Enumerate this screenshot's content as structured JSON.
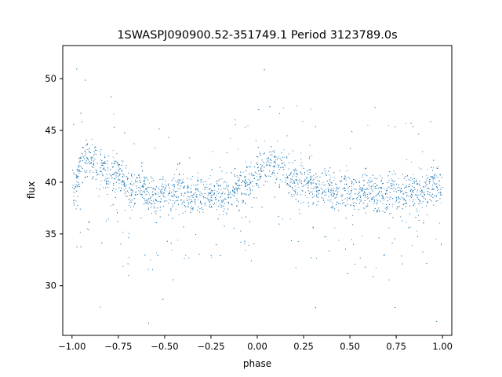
{
  "chart_data": {
    "type": "scatter",
    "title": "1SWASPJ090900.52-351749.1 Period 3123789.0s",
    "xlabel": "phase",
    "ylabel": "flux",
    "xlim": [
      -1.05,
      1.05
    ],
    "ylim": [
      25.2,
      53.2
    ],
    "xticks": [
      -1.0,
      -0.75,
      -0.5,
      -0.25,
      0.0,
      0.25,
      0.5,
      0.75,
      1.0
    ],
    "xtick_labels": [
      "−1.00",
      "−0.75",
      "−0.50",
      "−0.25",
      "0.00",
      "0.25",
      "0.50",
      "0.75",
      "1.00"
    ],
    "yticks": [
      30,
      35,
      40,
      45,
      50
    ],
    "ytick_labels": [
      "30",
      "35",
      "40",
      "45",
      "50"
    ],
    "grid": false,
    "point_color": "#1f77b4",
    "series": [
      {
        "description_points": "phase-folded light curve, mirrored over two cycles",
        "x": [
          -0.98,
          -0.95,
          -0.92,
          -0.88,
          -0.85,
          -0.82,
          -0.78,
          -0.75,
          -0.72,
          -0.7,
          -0.66,
          -0.62,
          -0.58,
          -0.55,
          -0.52,
          -0.5,
          -0.46,
          -0.42,
          -0.38,
          -0.35,
          -0.32,
          -0.28,
          -0.25,
          -0.22,
          -0.18,
          -0.15,
          -0.12,
          -0.08,
          -0.05,
          -0.02,
          0.0,
          0.02,
          0.05,
          0.08,
          0.12,
          0.15,
          0.18,
          0.22,
          0.25,
          0.28,
          0.32,
          0.35,
          0.38,
          0.42,
          0.46,
          0.5,
          0.52,
          0.55,
          0.58,
          0.62,
          0.66,
          0.7,
          0.72,
          0.75,
          0.78,
          0.82,
          0.85,
          0.88,
          0.92,
          0.95,
          0.98,
          1.0
        ],
        "y": [
          39.5,
          41.8,
          42.3,
          41.9,
          41.5,
          40.8,
          40.5,
          40.9,
          40.3,
          39.8,
          39.2,
          39.9,
          38.7,
          38.2,
          38.6,
          39.4,
          38.8,
          39.9,
          38.9,
          38.4,
          38.8,
          39.3,
          38.9,
          39.2,
          38.7,
          39.0,
          39.1,
          39.6,
          40.0,
          40.4,
          40.7,
          41.2,
          41.8,
          42.0,
          41.6,
          41.0,
          40.6,
          40.2,
          40.1,
          39.9,
          39.5,
          39.7,
          39.3,
          39.0,
          39.6,
          39.2,
          38.6,
          38.8,
          39.3,
          38.9,
          38.6,
          38.7,
          38.9,
          39.2,
          38.8,
          39.0,
          39.3,
          38.8,
          39.5,
          39.7,
          39.9,
          39.5
        ]
      }
    ]
  }
}
